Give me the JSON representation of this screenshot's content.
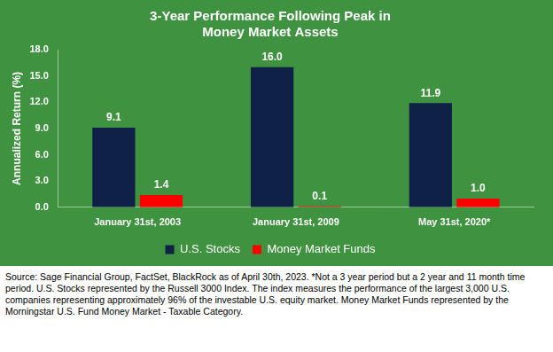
{
  "chart_data": {
    "type": "bar",
    "title": [
      "3-Year Performance Following Peak in",
      "Money Market Assets"
    ],
    "y_label": "Annualized Return (%)",
    "categories": [
      "January 31st, 2003",
      "January 31st, 2009",
      "May 31st, 2020*"
    ],
    "series": [
      {
        "name": "U.S. Stocks",
        "color": "#0f2147",
        "values": [
          9.1,
          16.0,
          11.9
        ],
        "value_labels": [
          "9.1",
          "16.0",
          "11.9"
        ]
      },
      {
        "name": "Money Market Funds",
        "color": "#ff0000",
        "values": [
          1.4,
          0.1,
          1.0
        ],
        "value_labels": [
          "1.4",
          "0.1",
          "1.0"
        ]
      }
    ],
    "ylim": [
      0,
      18
    ],
    "yticks": [
      {
        "value": 0,
        "label": "0.0"
      },
      {
        "value": 3,
        "label": "3.0"
      },
      {
        "value": 6,
        "label": "6.0"
      },
      {
        "value": 9,
        "label": "9.0"
      },
      {
        "value": 12,
        "label": "12.0"
      },
      {
        "value": 15,
        "label": "15.0"
      },
      {
        "value": 18,
        "label": "18.0"
      }
    ],
    "grid": false,
    "legend": "bottom",
    "data_labels": true,
    "note": "Source: Sage Financial Group, FactSet, BlackRock as of April 30th, 2023. *Not a 3 year period but a 2 year and 11 month time period. U.S. Stocks represented by the Russell 3000 Index. The index measures the performance of the largest 3,000 U.S. companies representing approximately 96% of the investable U.S. equity market.  Money Market Funds represented by the Morningstar U.S. Fund Money Market - Taxable Category."
  }
}
